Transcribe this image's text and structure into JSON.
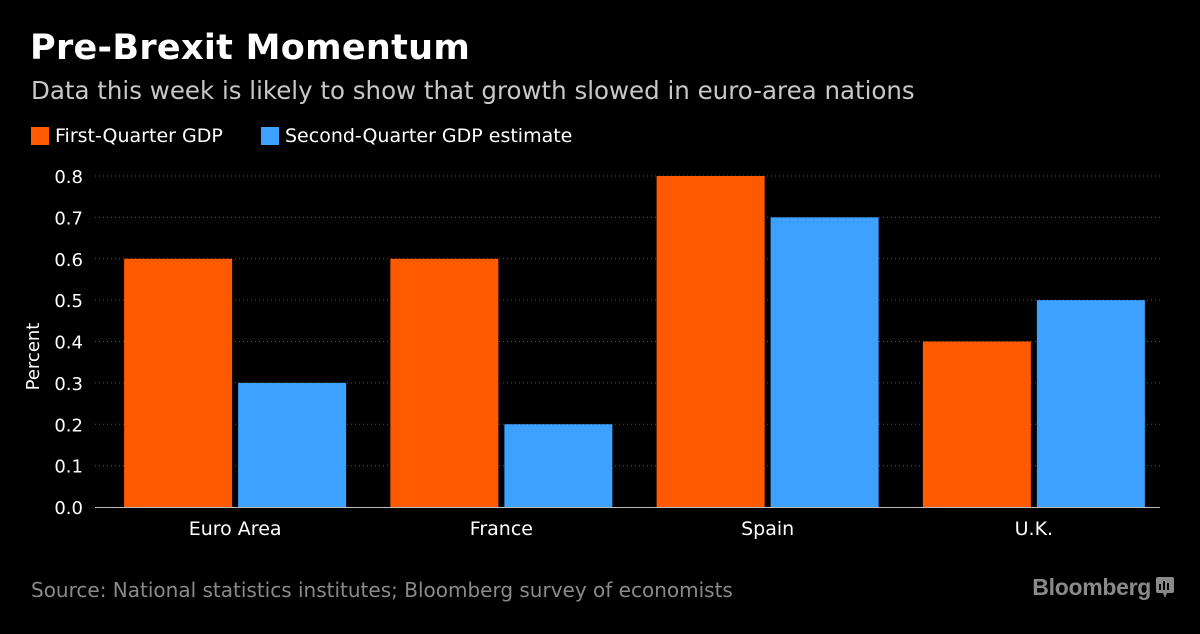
{
  "header": {
    "title": "Pre-Brexit Momentum",
    "subtitle": "Data this week is likely to show that growth slowed in euro-area nations"
  },
  "legend": {
    "series_1": {
      "label": "First-Quarter GDP",
      "color": "#ff5a00"
    },
    "series_2": {
      "label": "Second-Quarter GDP estimate",
      "color": "#3ea0ff"
    }
  },
  "chart_data": {
    "type": "bar",
    "title": "Pre-Brexit Momentum",
    "subtitle": "Data this week is likely to show that growth slowed in euro-area nations",
    "categories": [
      "Euro Area",
      "France",
      "Spain",
      "U.K."
    ],
    "series": [
      {
        "name": "First-Quarter GDP",
        "color": "#ff5a00",
        "values": [
          0.6,
          0.6,
          0.8,
          0.4
        ]
      },
      {
        "name": "Second-Quarter GDP estimate",
        "color": "#3ea0ff",
        "values": [
          0.3,
          0.2,
          0.7,
          0.5
        ]
      }
    ],
    "xlabel": "",
    "ylabel": "Percent",
    "ylim": [
      0,
      0.8
    ],
    "yticks": [
      "0.0",
      "0.1",
      "0.2",
      "0.3",
      "0.4",
      "0.5",
      "0.6",
      "0.7",
      "0.8"
    ],
    "grid": true,
    "legend_position": "top-left"
  },
  "footer": {
    "source": "Source: National statistics institutes; Bloomberg survey of economists",
    "brand": "Bloomberg"
  }
}
